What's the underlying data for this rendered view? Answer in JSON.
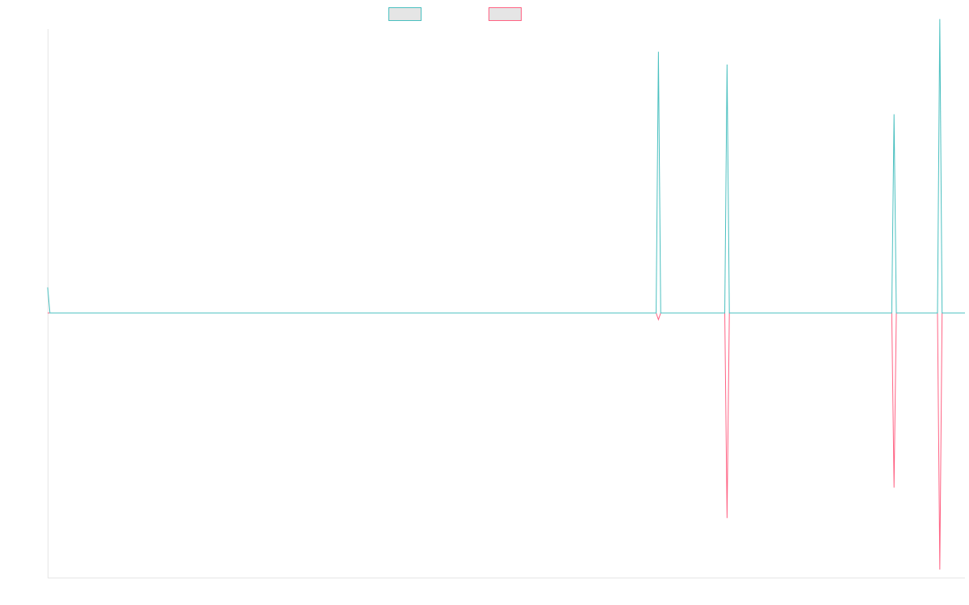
{
  "chart_data": {
    "type": "line",
    "title": "",
    "xlabel": "",
    "ylabel": "",
    "grid": false,
    "legend": {
      "placement": "top-center",
      "entries": [
        {
          "name": "",
          "color": "#4bc0c0",
          "fill": "#e5e5e5"
        },
        {
          "name": "",
          "color": "#ff6384",
          "fill": "#e5e5e5"
        }
      ]
    },
    "ylim": [
      -100,
      100
    ],
    "x_count": 402,
    "series": [
      {
        "name": "",
        "color": "#4bc0c0",
        "points": [
          [
            0,
            9
          ],
          [
            1,
            0
          ],
          [
            266,
            0
          ],
          [
            267,
            92
          ],
          [
            268,
            0
          ],
          [
            296,
            0
          ],
          [
            297,
            87.5
          ],
          [
            298,
            0
          ],
          [
            369,
            0
          ],
          [
            370,
            70
          ],
          [
            371,
            0
          ],
          [
            389,
            0
          ],
          [
            390,
            103.5
          ],
          [
            391,
            0
          ],
          [
            401,
            0
          ]
        ]
      },
      {
        "name": "",
        "color": "#ff6384",
        "points": [
          [
            0,
            0
          ],
          [
            266,
            0
          ],
          [
            267,
            -2.5
          ],
          [
            268,
            0
          ],
          [
            296,
            0
          ],
          [
            297,
            -77.5
          ],
          [
            298,
            0
          ],
          [
            369,
            0
          ],
          [
            370,
            -66
          ],
          [
            371,
            0
          ],
          [
            389,
            0
          ],
          [
            390,
            -97
          ],
          [
            391,
            0
          ],
          [
            401,
            0
          ]
        ]
      }
    ]
  }
}
